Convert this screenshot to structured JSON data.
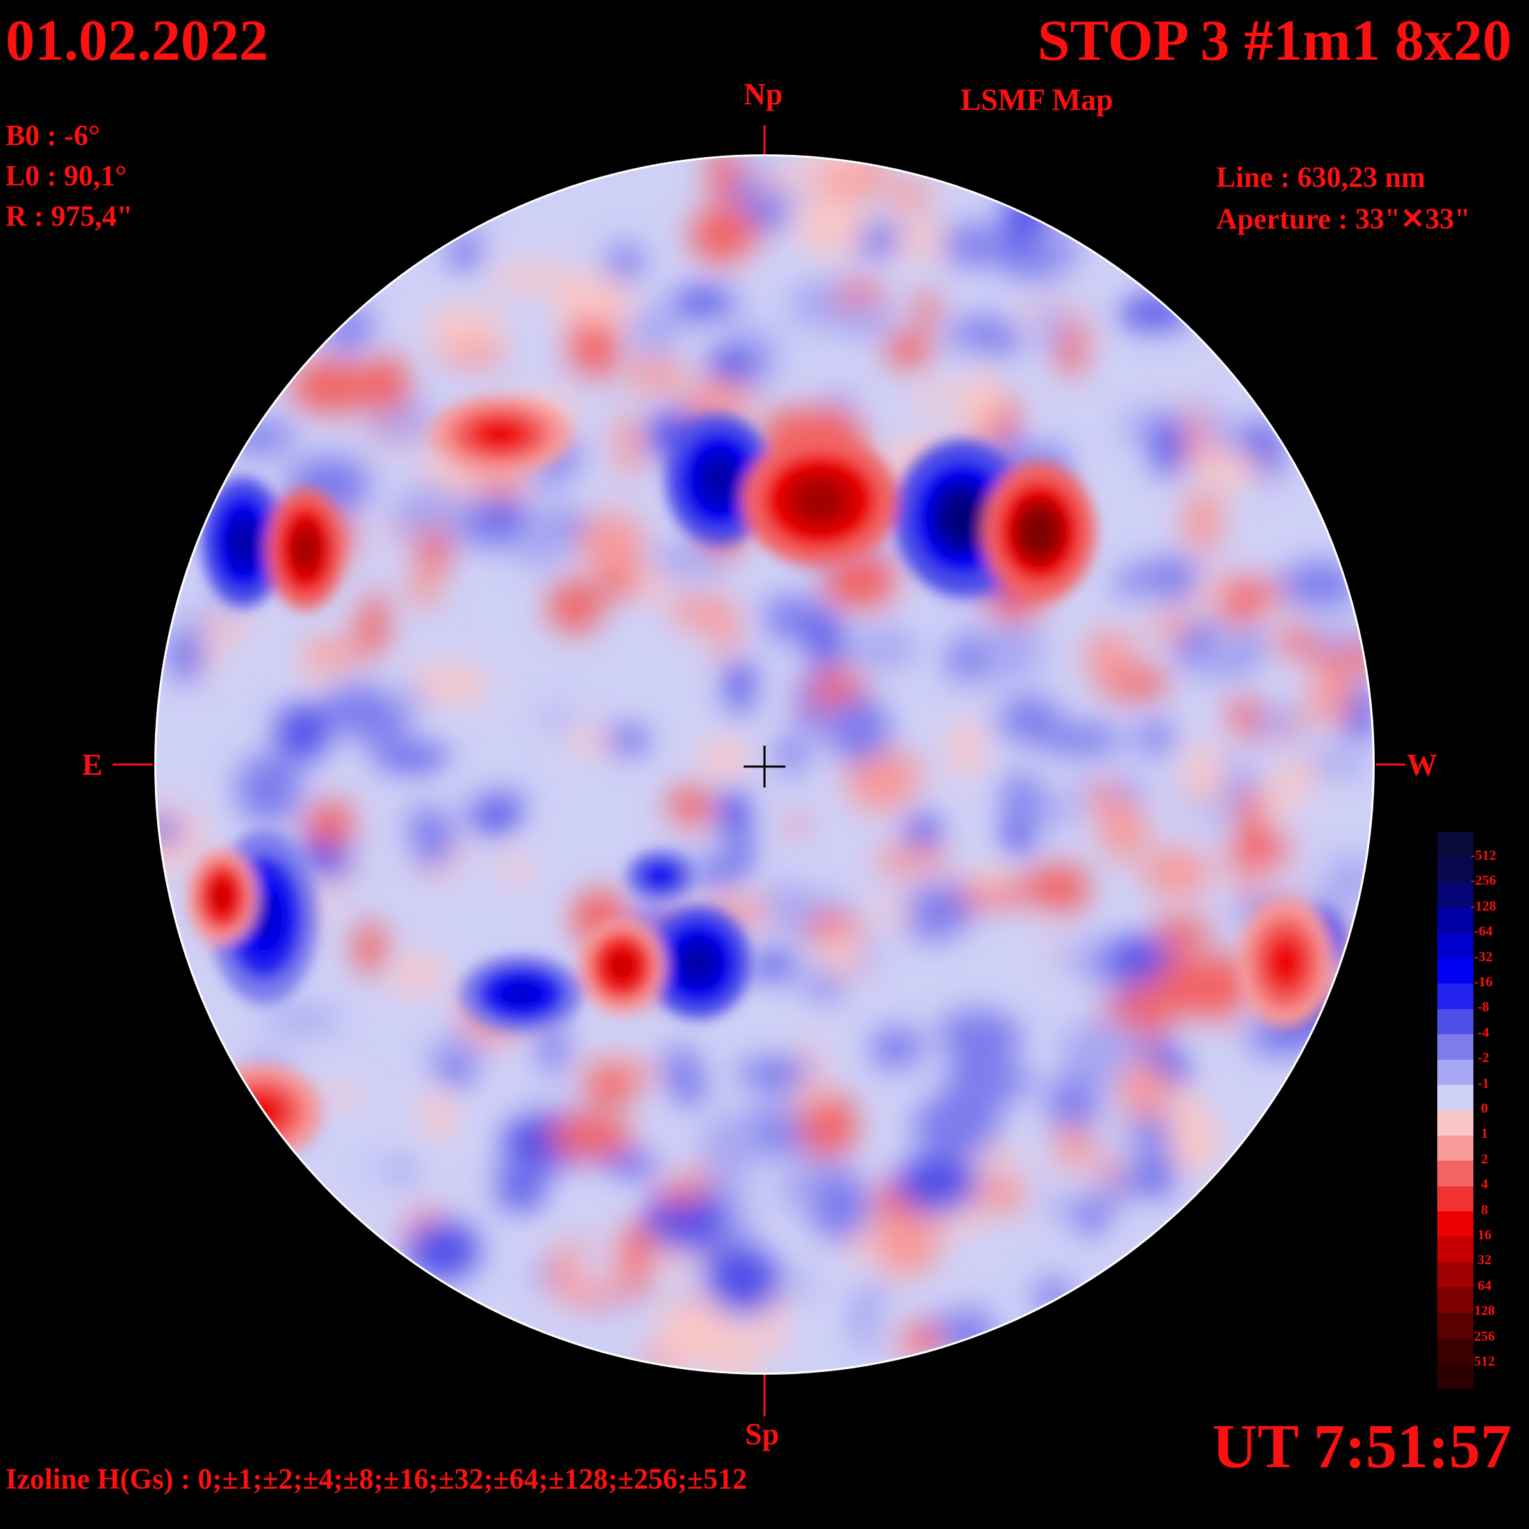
{
  "header": {
    "date": "01.02.2022",
    "title": "STOP 3 #1m1 8x20",
    "subtitle": "LSMF  Map"
  },
  "params": {
    "b0": "B0 : -6°",
    "l0": "L0 : 90,1°",
    "r": "R  : 975,4\"",
    "line": "Line :  630,23 nm",
    "aperture": "Aperture : 33\"✕33\""
  },
  "compass": {
    "north": "Np",
    "south": "Sp",
    "east": "E",
    "west": "W"
  },
  "footer": {
    "ut": "UT 7:51:57",
    "izoline": "Izoline H(Gs) : 0;±1;±2;±4;±8;±16;±32;±64;±128;±256;±512"
  },
  "legend": {
    "levels": [
      {
        "label": "-512",
        "color": "#0a0a3a"
      },
      {
        "label": "-256",
        "color": "#08084f"
      },
      {
        "label": "-128",
        "color": "#050578"
      },
      {
        "label": "-64",
        "color": "#0000a6"
      },
      {
        "label": "-32",
        "color": "#0000cc"
      },
      {
        "label": "-16",
        "color": "#0000f2"
      },
      {
        "label": "-8",
        "color": "#2222ee"
      },
      {
        "label": "-4",
        "color": "#4e4ee8"
      },
      {
        "label": "-2",
        "color": "#7c7ced"
      },
      {
        "label": "-1",
        "color": "#a8a8f2"
      },
      {
        "label": "0",
        "color": "#cfd0f6"
      },
      {
        "label": "1",
        "color": "#f9c7c7"
      },
      {
        "label": "2",
        "color": "#f79a9a"
      },
      {
        "label": "4",
        "color": "#f26464"
      },
      {
        "label": "8",
        "color": "#f03232"
      },
      {
        "label": "16",
        "color": "#ee0000"
      },
      {
        "label": "32",
        "color": "#c60000"
      },
      {
        "label": "64",
        "color": "#a00000"
      },
      {
        "label": "128",
        "color": "#7c0000"
      },
      {
        "label": "256",
        "color": "#5a0000"
      },
      {
        "label": "512",
        "color": "#3a0000"
      },
      {
        "label": "",
        "color": "#2a0000"
      }
    ]
  },
  "colors": {
    "text": "#ff1010",
    "disk_background": "#cfd0f6",
    "positive": "#ee0000",
    "negative": "#0000f2"
  },
  "map_features": [
    {
      "polarity": "negative",
      "strength": 64
    },
    {
      "polarity": "negative",
      "strength": 64
    },
    {
      "polarity": "negative",
      "strength": 128
    },
    {
      "polarity": "negative",
      "strength": 64
    },
    {
      "polarity": "negative",
      "strength": 32
    },
    {
      "polarity": "negative",
      "strength": 32
    },
    {
      "polarity": "negative",
      "strength": 16
    },
    {
      "polarity": "negative",
      "strength": 16
    },
    {
      "polarity": "positive",
      "strength": 64
    },
    {
      "polarity": "positive",
      "strength": 128
    },
    {
      "polarity": "positive",
      "strength": 64
    },
    {
      "polarity": "positive",
      "strength": 32
    },
    {
      "polarity": "positive",
      "strength": 32
    },
    {
      "polarity": "positive",
      "strength": 16
    },
    {
      "polarity": "positive",
      "strength": 16
    },
    {
      "polarity": "positive",
      "strength": 16
    }
  ]
}
